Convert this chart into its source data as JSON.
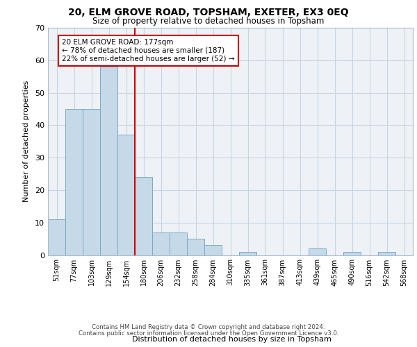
{
  "title1": "20, ELM GROVE ROAD, TOPSHAM, EXETER, EX3 0EQ",
  "title2": "Size of property relative to detached houses in Topsham",
  "xlabel": "Distribution of detached houses by size in Topsham",
  "ylabel": "Number of detached properties",
  "bar_labels": [
    "51sqm",
    "77sqm",
    "103sqm",
    "129sqm",
    "154sqm",
    "180sqm",
    "206sqm",
    "232sqm",
    "258sqm",
    "284sqm",
    "310sqm",
    "335sqm",
    "361sqm",
    "387sqm",
    "413sqm",
    "439sqm",
    "465sqm",
    "490sqm",
    "516sqm",
    "542sqm",
    "568sqm"
  ],
  "bar_values": [
    11,
    45,
    45,
    58,
    37,
    24,
    7,
    7,
    5,
    3,
    0,
    1,
    0,
    0,
    0,
    2,
    0,
    1,
    0,
    1,
    0
  ],
  "bar_color": "#c5d9e8",
  "bar_edgecolor": "#7aaac8",
  "vline_color": "#cc0000",
  "annotation_text": "20 ELM GROVE ROAD: 177sqm\n← 78% of detached houses are smaller (187)\n22% of semi-detached houses are larger (52) →",
  "annotation_box_color": "#ffffff",
  "annotation_box_edgecolor": "#cc0000",
  "ylim": [
    0,
    70
  ],
  "yticks": [
    0,
    10,
    20,
    30,
    40,
    50,
    60,
    70
  ],
  "footer_line1": "Contains HM Land Registry data © Crown copyright and database right 2024.",
  "footer_line2": "Contains public sector information licensed under the Open Government Licence v3.0.",
  "bg_color": "#eef2f7",
  "grid_color": "#c8d4e0"
}
